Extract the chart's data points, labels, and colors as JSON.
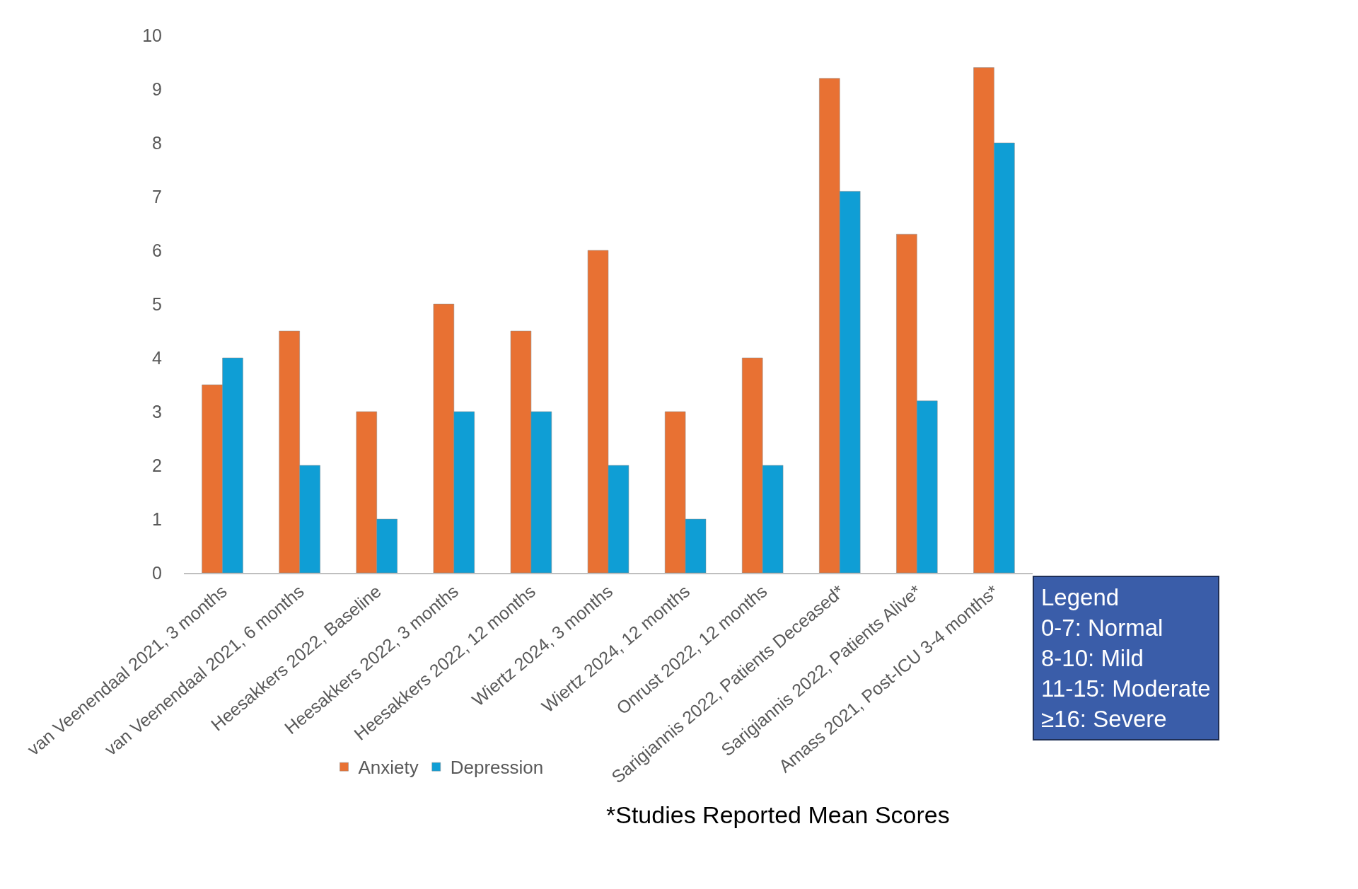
{
  "chart_data": {
    "type": "bar",
    "categories": [
      "van Veenendaal 2021, 3 months",
      "van Veenendaal 2021, 6 months",
      "Heesakkers 2022, Baseline",
      "Heesakkers 2022, 3 months",
      "Heesakkers 2022, 12 months",
      "Wiertz 2024, 3 months",
      "Wiertz 2024, 12 months",
      "Onrust 2022, 12 months",
      "Sarigiannis 2022, Patients Deceased*",
      "Sarigiannis 2022, Patients Alive*",
      "Amass 2021, Post-ICU 3-4 months*"
    ],
    "series": [
      {
        "name": "Anxiety",
        "color": "#e87133",
        "values": [
          3.5,
          4.5,
          3,
          5,
          4.5,
          6,
          3,
          4,
          9.2,
          6.3,
          9.4
        ]
      },
      {
        "name": "Depression",
        "color": "#0f9ed5",
        "values": [
          4,
          2,
          1,
          3,
          3,
          2,
          1,
          2,
          7.1,
          3.2,
          8.0
        ]
      }
    ],
    "ylim": [
      0,
      10
    ],
    "yticks": [
      0,
      1,
      2,
      3,
      4,
      5,
      6,
      7,
      8,
      9,
      10
    ],
    "grid": false,
    "legend": "bottom",
    "annotations": [
      "Legend\n0-7: Normal\n8-10: Mild\n11-15: Moderate\n≥16: Severe",
      "*Studies Reported Mean Scores"
    ]
  }
}
